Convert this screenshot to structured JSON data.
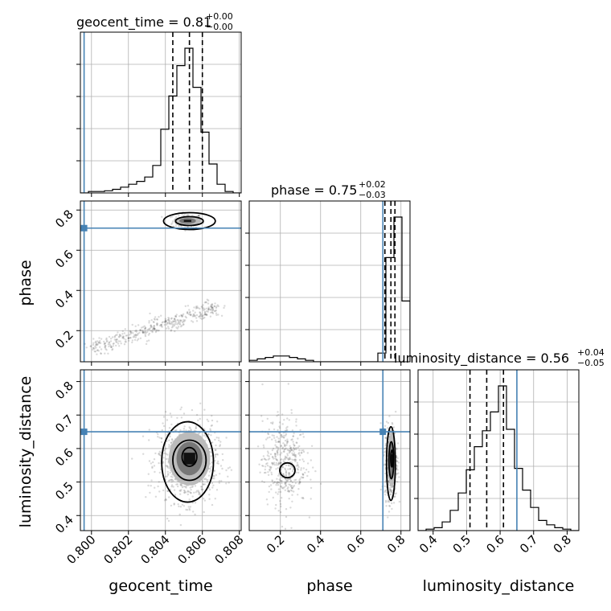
{
  "chart_data": {
    "type": "corner",
    "truth_color": "#4682b4",
    "parameters": [
      {
        "name": "geocent_time",
        "label": "geocent_time",
        "range": [
          0.7994,
          0.8081
        ],
        "ticks": [
          0.8,
          0.802,
          0.804,
          0.806,
          0.808
        ],
        "tick_labels": [
          "0.800",
          "0.802",
          "0.804",
          "0.806",
          "0.808"
        ],
        "truth": 0.7996,
        "median": 0.8053,
        "q16": 0.8044,
        "q84": 0.806
      },
      {
        "name": "phase",
        "label": "phase",
        "range": [
          0.045,
          0.845
        ],
        "ticks": [
          0.2,
          0.4,
          0.6,
          0.8
        ],
        "tick_labels": [
          "0.2",
          "0.4",
          "0.6",
          "0.8"
        ],
        "truth": 0.71,
        "median": 0.75,
        "q16": 0.72,
        "q84": 0.77
      },
      {
        "name": "luminosity_distance",
        "label": "luminosity_distance",
        "range": [
          0.355,
          0.835
        ],
        "ticks": [
          0.4,
          0.5,
          0.6,
          0.7,
          0.8
        ],
        "tick_labels": [
          "0.4",
          "0.5",
          "0.6",
          "0.7",
          "0.8"
        ],
        "truth": 0.65,
        "median": 0.56,
        "q16": 0.51,
        "q84": 0.61
      }
    ],
    "titles": {
      "geocent_time": {
        "text": "geocent_time = 0.81",
        "sup": "+0.00",
        "sub": "−0.00"
      },
      "phase": {
        "text": "phase = 0.75",
        "sup": "+0.02",
        "sub": "−0.03"
      },
      "luminosity_distance": {
        "text": "luminosity_distance = 0.56",
        "sup": "+0.04",
        "sub": "−0.05"
      }
    },
    "histograms": {
      "geocent_time": {
        "edges_start": 0.7994,
        "edges_step": 0.000435,
        "counts": [
          0,
          0.01,
          0.01,
          0.015,
          0.025,
          0.04,
          0.06,
          0.08,
          0.11,
          0.19,
          0.44,
          0.67,
          0.88,
          1.0,
          0.73,
          0.42,
          0.2,
          0.06,
          0.01,
          0
        ]
      },
      "phase": {
        "edges_start": 0.045,
        "edges_step": 0.04,
        "counts": [
          0.01,
          0.02,
          0.03,
          0.04,
          0.04,
          0.03,
          0.02,
          0.01,
          0,
          0,
          0,
          0,
          0,
          0,
          0,
          0,
          0.06,
          0.72,
          1.0,
          0.42
        ]
      },
      "luminosity_distance": {
        "edges_start": 0.355,
        "edges_step": 0.024,
        "counts": [
          0,
          0.01,
          0.02,
          0.06,
          0.14,
          0.26,
          0.42,
          0.58,
          0.69,
          0.82,
          1.0,
          0.7,
          0.43,
          0.28,
          0.16,
          0.07,
          0.04,
          0.02,
          0.01,
          0
        ]
      }
    },
    "scatter_clusters": {
      "geocent_time|phase": [
        {
          "cx": 0.8052,
          "cy": 0.745,
          "sx": 0.0004,
          "sy": 0.018,
          "n": 180
        },
        {
          "line": true,
          "x0": 0.8,
          "y0": 0.11,
          "x1": 0.8068,
          "y1": 0.32,
          "spread_x": 0.00025,
          "spread_y": 0.02,
          "n": 420
        }
      ],
      "geocent_time|luminosity_distance": [
        {
          "cx": 0.8052,
          "cy": 0.56,
          "sx": 0.0008,
          "sy": 0.06,
          "n": 900
        }
      ],
      "phase|luminosity_distance": [
        {
          "cx": 0.75,
          "cy": 0.56,
          "sx": 0.015,
          "sy": 0.055,
          "n": 500
        },
        {
          "cx": 0.22,
          "cy": 0.56,
          "sx": 0.055,
          "sy": 0.065,
          "n": 450
        }
      ]
    },
    "density_blobs": {
      "geocent_time|phase": [
        {
          "cx": 0.8052,
          "cy": 0.746,
          "rx": 0.00045,
          "ry": 0.014
        }
      ],
      "geocent_time|luminosity_distance": [
        {
          "cx": 0.8053,
          "cy": 0.57,
          "rx": 0.0007,
          "ry": 0.05
        }
      ],
      "phase|luminosity_distance": [
        {
          "cx": 0.753,
          "cy": 0.565,
          "rx": 0.012,
          "ry": 0.05
        }
      ]
    },
    "contours": {
      "geocent_time|phase": [
        {
          "cx": 0.8053,
          "cy": 0.745,
          "rx": 0.0014,
          "ry": 0.042
        },
        {
          "cx": 0.8053,
          "cy": 0.745,
          "rx": 0.00075,
          "ry": 0.022
        }
      ],
      "geocent_time|luminosity_distance": [
        {
          "cx": 0.8052,
          "cy": 0.56,
          "rx": 0.0014,
          "ry": 0.12
        },
        {
          "cx": 0.8053,
          "cy": 0.565,
          "rx": 0.0009,
          "ry": 0.06
        },
        {
          "cx": 0.8053,
          "cy": 0.575,
          "rx": 0.0004,
          "ry": 0.028
        }
      ],
      "phase|luminosity_distance": [
        {
          "cx": 0.75,
          "cy": 0.555,
          "rx": 0.022,
          "ry": 0.11
        },
        {
          "cx": 0.752,
          "cy": 0.565,
          "rx": 0.012,
          "ry": 0.055
        },
        {
          "cx": 0.755,
          "cy": 0.57,
          "rx": 0.006,
          "ry": 0.025
        },
        {
          "cx": 0.235,
          "cy": 0.535,
          "rx": 0.038,
          "ry": 0.022
        }
      ]
    }
  }
}
